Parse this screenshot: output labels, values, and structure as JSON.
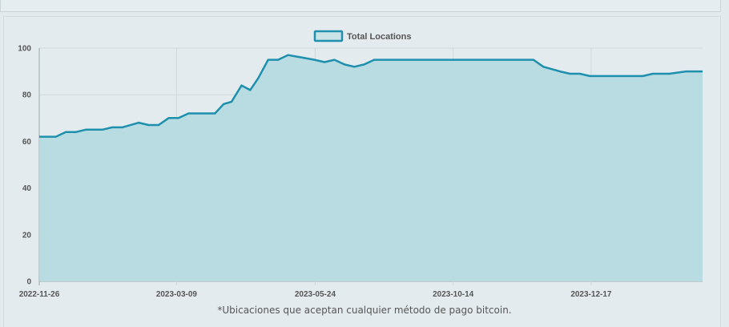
{
  "chart_data": {
    "type": "area",
    "legend": {
      "label": "Total Locations",
      "placement": "top-center"
    },
    "series": [
      {
        "name": "Total Locations",
        "color": "#1e90ad",
        "fill": "#b5dbdf",
        "points": [
          [
            0.0,
            62
          ],
          [
            0.025,
            62
          ],
          [
            0.04,
            64
          ],
          [
            0.055,
            64
          ],
          [
            0.07,
            65
          ],
          [
            0.095,
            65
          ],
          [
            0.11,
            66
          ],
          [
            0.125,
            66
          ],
          [
            0.15,
            68
          ],
          [
            0.165,
            67
          ],
          [
            0.18,
            67
          ],
          [
            0.195,
            70
          ],
          [
            0.21,
            70
          ],
          [
            0.225,
            72
          ],
          [
            0.255,
            72
          ],
          [
            0.265,
            72
          ],
          [
            0.278,
            76
          ],
          [
            0.29,
            77
          ],
          [
            0.305,
            84
          ],
          [
            0.318,
            82
          ],
          [
            0.33,
            87
          ],
          [
            0.345,
            95
          ],
          [
            0.36,
            95
          ],
          [
            0.375,
            97
          ],
          [
            0.395,
            96
          ],
          [
            0.415,
            95
          ],
          [
            0.43,
            94
          ],
          [
            0.445,
            95
          ],
          [
            0.46,
            93
          ],
          [
            0.475,
            92
          ],
          [
            0.49,
            93
          ],
          [
            0.505,
            95
          ],
          [
            0.52,
            95
          ],
          [
            0.54,
            95
          ],
          [
            0.6,
            95
          ],
          [
            0.66,
            95
          ],
          [
            0.725,
            95
          ],
          [
            0.745,
            95
          ],
          [
            0.76,
            92
          ],
          [
            0.785,
            90
          ],
          [
            0.8,
            89
          ],
          [
            0.815,
            89
          ],
          [
            0.83,
            88
          ],
          [
            0.87,
            88
          ],
          [
            0.9,
            88
          ],
          [
            0.91,
            88
          ],
          [
            0.925,
            89
          ],
          [
            0.95,
            89
          ],
          [
            0.975,
            90
          ],
          [
            1.0,
            90
          ],
          [
            1.1,
            90
          ]
        ]
      }
    ],
    "x_ticks": [
      "2022-11-26",
      "2023-03-09",
      "2023-05-24",
      "2023-10-14",
      "2023-12-17"
    ],
    "y_ticks": [
      "0",
      "20",
      "40",
      "60",
      "80",
      "100"
    ],
    "ylim": [
      0,
      100
    ],
    "grid": true
  },
  "footnote": "*Ubicaciones que aceptan cualquier método de pago bitcoin."
}
